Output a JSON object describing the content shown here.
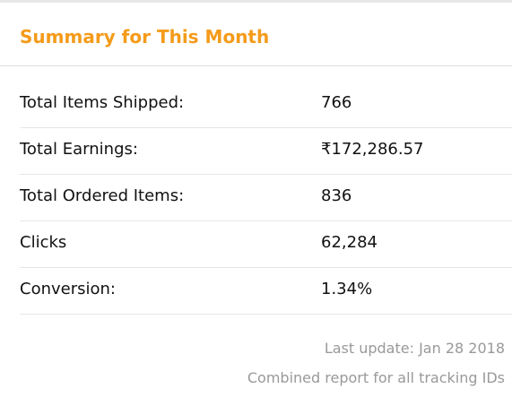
{
  "panel": {
    "title": "Summary for This Month",
    "colors": {
      "title": "#f49b1a",
      "text": "#111111",
      "muted": "#999999",
      "divider": "#e6e6e6"
    }
  },
  "summary": {
    "rows": [
      {
        "label": "Total Items Shipped:",
        "value": "766"
      },
      {
        "label": "Total Earnings:",
        "value": "₹172,286.57"
      },
      {
        "label": "Total Ordered Items:",
        "value": "836"
      },
      {
        "label": "Clicks",
        "value": "62,284"
      },
      {
        "label": "Conversion:",
        "value": "1.34%"
      }
    ]
  },
  "footer": {
    "last_update": "Last update: Jan 28 2018",
    "combined_report": "Combined report for all tracking IDs"
  }
}
